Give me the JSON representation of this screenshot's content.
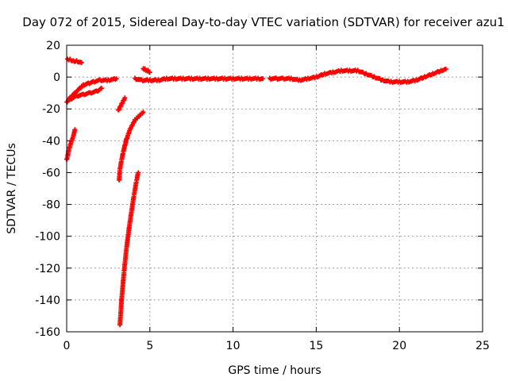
{
  "chart_data": {
    "type": "scatter",
    "title": "Day 072 of 2015, Sidereal Day-to-day VTEC variation (SDTVAR) for receiver azu1",
    "xlabel": "GPS time / hours",
    "ylabel": "SDTVAR / TECUs",
    "xlim": [
      0,
      25
    ],
    "ylim": [
      -160,
      20
    ],
    "xticks": [
      "0",
      "5",
      "10",
      "15",
      "20",
      "25"
    ],
    "yticks": [
      "20",
      "0",
      "-20",
      "-40",
      "-60",
      "-80",
      "-100",
      "-120",
      "-140",
      "-160"
    ],
    "grid": true,
    "marker": "+",
    "color": "#ff0000",
    "segments": [
      {
        "x": [
          0.0,
          0.2,
          0.5,
          0.8,
          1.0,
          1.3,
          1.6,
          2.0,
          2.5,
          3.0
        ],
        "y": [
          -16,
          -13,
          -10,
          -7,
          -5,
          -4,
          -3,
          -2,
          -2,
          -1
        ]
      },
      {
        "x": [
          0.2,
          0.6,
          1.0,
          1.4,
          1.8,
          2.1
        ],
        "y": [
          -14,
          -12,
          -11,
          -10,
          -9,
          -7
        ]
      },
      {
        "x": [
          0.05,
          0.2,
          0.4,
          0.6,
          0.9
        ],
        "y": [
          11,
          11,
          10,
          10,
          9
        ]
      },
      {
        "x": [
          0.0,
          0.05,
          0.1,
          0.15,
          0.2,
          0.3,
          0.4,
          0.5
        ],
        "y": [
          -52,
          -50,
          -47,
          -45,
          -43,
          -40,
          -37,
          -33
        ]
      },
      {
        "x": [
          3.1,
          3.2,
          3.3,
          3.4,
          3.5
        ],
        "y": [
          -21,
          -19,
          -17,
          -15,
          -13
        ]
      },
      {
        "x": [
          3.15,
          3.2,
          3.3,
          3.4,
          3.5,
          3.6,
          3.7,
          3.8,
          3.9,
          4.0,
          4.1,
          4.2,
          4.3,
          4.4,
          4.5,
          4.6
        ],
        "y": [
          -65,
          -58,
          -52,
          -47,
          -43,
          -39,
          -36,
          -33,
          -31,
          -29,
          -27,
          -26,
          -25,
          -24,
          -23,
          -22
        ]
      },
      {
        "x": [
          3.2,
          3.3,
          3.45,
          3.6,
          3.75,
          3.9,
          4.05,
          4.2,
          4.3
        ],
        "y": [
          -156,
          -140,
          -122,
          -107,
          -95,
          -84,
          -74,
          -65,
          -60
        ]
      },
      {
        "x": [
          4.6,
          4.7,
          4.8,
          4.9,
          5.0
        ],
        "y": [
          5,
          5,
          4,
          4,
          3
        ]
      },
      {
        "x": [
          4.1,
          4.5,
          5.0,
          5.5,
          6.0,
          6.5,
          7.0,
          7.5,
          8.0,
          8.5,
          9.0,
          9.5,
          10.0,
          10.5,
          11.0,
          11.5,
          11.8
        ],
        "y": [
          -1,
          -2,
          -2,
          -2,
          -1,
          -1,
          -1,
          -1,
          -1,
          -1,
          -1,
          -1,
          -1,
          -1,
          -1,
          -1,
          -1
        ]
      },
      {
        "x": [
          12.2,
          12.6,
          13.0,
          13.5,
          14.0,
          14.5,
          15.0,
          15.5,
          16.0,
          16.5,
          17.0,
          17.5,
          18.0,
          18.5,
          19.0,
          19.5,
          20.0,
          20.5,
          21.0,
          21.5,
          22.0,
          22.5,
          22.8
        ],
        "y": [
          -1,
          -1,
          -1,
          -1,
          -2,
          -1,
          0,
          2,
          3,
          4,
          4,
          4,
          2,
          0,
          -2,
          -3,
          -3,
          -3,
          -2,
          0,
          2,
          4,
          5
        ]
      }
    ]
  }
}
